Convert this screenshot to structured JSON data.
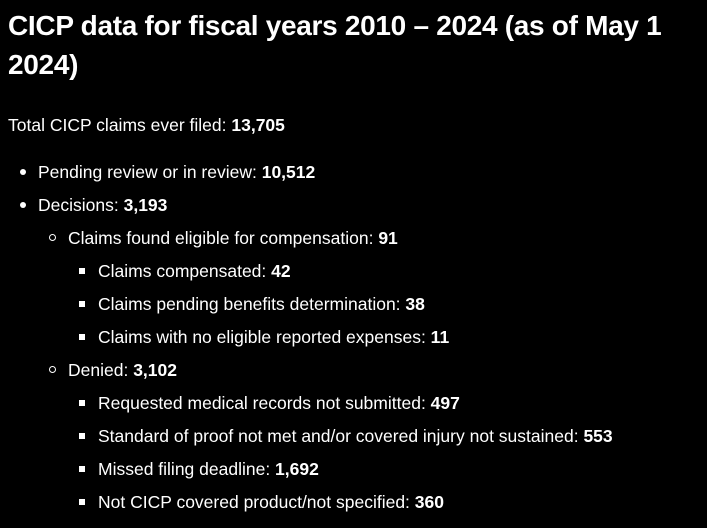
{
  "heading": "CICP data for fiscal years 2010 – 2024 (as of May 1 2024)",
  "total": {
    "label": "Total CICP claims ever filed: ",
    "value": "13,705"
  },
  "items": [
    {
      "label": "Pending review or in review: ",
      "value": "10,512"
    },
    {
      "label": "Decisions: ",
      "value": "3,193",
      "children": [
        {
          "label": "Claims found eligible for compensation: ",
          "value": "91",
          "children": [
            {
              "label": "Claims compensated: ",
              "value": "42"
            },
            {
              "label": "Claims pending benefits determination: ",
              "value": "38"
            },
            {
              "label": "Claims with no eligible reported expenses: ",
              "value": "11"
            }
          ]
        },
        {
          "label": "Denied: ",
          "value": "3,102",
          "children": [
            {
              "label": "Requested medical records not submitted: ",
              "value": "497"
            },
            {
              "label": "Standard of proof not met and/or covered injury not sustained: ",
              "value": "553"
            },
            {
              "label": "Missed filing deadline: ",
              "value": "1,692"
            },
            {
              "label": "Not CICP covered product/not specified: ",
              "value": "360"
            }
          ]
        }
      ]
    }
  ]
}
